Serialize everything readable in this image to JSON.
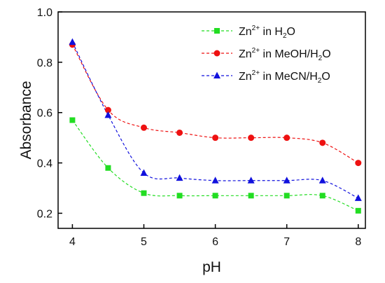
{
  "chart_data": {
    "type": "line",
    "xlabel": "pH",
    "ylabel": "Absorbance",
    "xlim": [
      3.8,
      8.1
    ],
    "ylim": [
      0.14,
      1.0
    ],
    "x_ticks": [
      4,
      5,
      6,
      7,
      8
    ],
    "y_ticks": [
      0.2,
      0.4,
      0.6,
      0.8,
      1.0
    ],
    "x_tick_labels": [
      "4",
      "5",
      "6",
      "7",
      "8"
    ],
    "y_tick_labels": [
      "0.2",
      "0.4",
      "0.6",
      "0.8",
      "1.0"
    ],
    "legend_position": "top-right",
    "grid": false,
    "x": [
      4,
      4.5,
      5,
      5.5,
      6,
      6.5,
      7,
      7.5,
      8
    ],
    "series": [
      {
        "key": "water",
        "legend": {
          "base": "Zn",
          "sup": "2+",
          "mid": " in H",
          "sub": "2",
          "end": "O"
        },
        "color": "#22dd22",
        "marker": "square",
        "values": [
          0.57,
          0.38,
          0.28,
          0.27,
          0.27,
          0.27,
          0.27,
          0.27,
          0.21
        ]
      },
      {
        "key": "meoh",
        "legend": {
          "base": "Zn",
          "sup": "2+",
          "mid": " in MeOH/H",
          "sub": "2",
          "end": "O"
        },
        "color": "#ee1111",
        "marker": "circle",
        "values": [
          0.87,
          0.61,
          0.54,
          0.52,
          0.5,
          0.5,
          0.5,
          0.48,
          0.4
        ]
      },
      {
        "key": "mecn",
        "legend": {
          "base": "Zn",
          "sup": "2+",
          "mid": " in MeCN/H",
          "sub": "2",
          "end": "O"
        },
        "color": "#1111dd",
        "marker": "triangle",
        "values": [
          0.88,
          0.59,
          0.36,
          0.34,
          0.33,
          0.33,
          0.33,
          0.33,
          0.26
        ]
      }
    ]
  }
}
